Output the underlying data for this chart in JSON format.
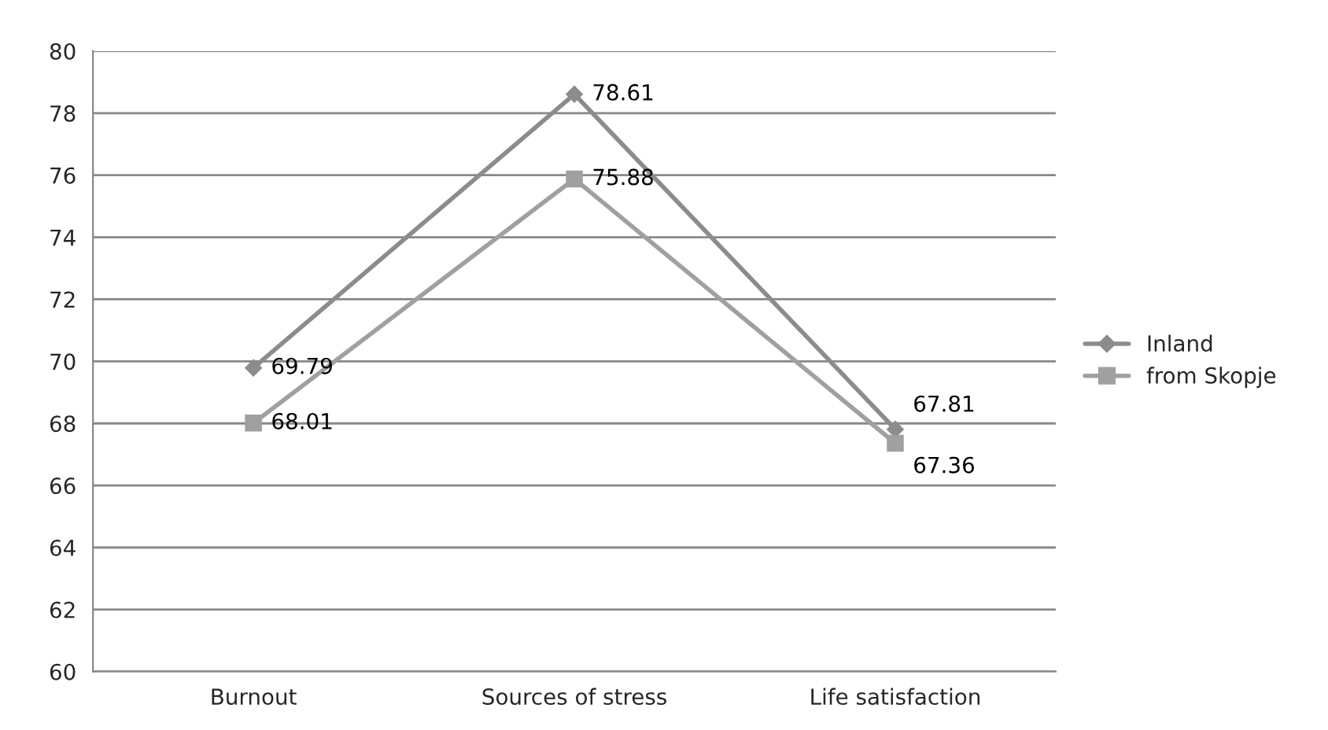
{
  "chart_data": {
    "type": "line",
    "categories": [
      "Burnout",
      "Sources of stress",
      "Life satisfaction"
    ],
    "series": [
      {
        "name": "Inland",
        "color": "#8c8c8c",
        "marker": "diamond",
        "values": [
          69.79,
          78.61,
          67.81
        ]
      },
      {
        "name": "from Skopje",
        "color": "#a0a0a0",
        "marker": "square",
        "values": [
          68.01,
          75.88,
          67.36
        ]
      }
    ],
    "ylim": [
      60,
      80
    ],
    "yticks": [
      60,
      62,
      64,
      66,
      68,
      70,
      72,
      74,
      76,
      78,
      80
    ],
    "grid": "y",
    "legend": "right",
    "data_labels": true,
    "line_style": "solid"
  }
}
